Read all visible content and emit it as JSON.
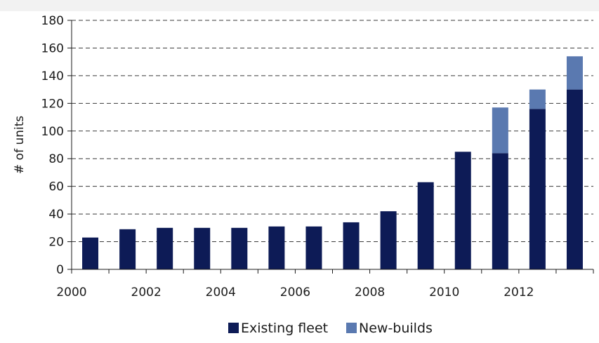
{
  "chart_data": {
    "type": "bar",
    "stacked": true,
    "title": "",
    "xlabel": "",
    "ylabel": "# of units",
    "ylim": [
      0,
      180
    ],
    "yticks": [
      0,
      20,
      40,
      60,
      80,
      100,
      120,
      140,
      160,
      180
    ],
    "grid": true,
    "legend_position": "bottom",
    "categories": [
      "2000",
      "2001",
      "2002",
      "2003",
      "2004",
      "2005",
      "2006",
      "2007",
      "2008",
      "2009",
      "2010",
      "2011",
      "2012",
      "2013"
    ],
    "x_tick_labels": [
      "2000",
      "2002",
      "2004",
      "2006",
      "2008",
      "2010",
      "2012"
    ],
    "series": [
      {
        "name": "Existing fleet",
        "color": "#0d1b56",
        "values": [
          23,
          29,
          30,
          30,
          30,
          31,
          31,
          34,
          42,
          63,
          85,
          84,
          116,
          130
        ]
      },
      {
        "name": "New-builds",
        "color": "#5a79b0",
        "values": [
          0,
          0,
          0,
          0,
          0,
          0,
          0,
          0,
          0,
          0,
          0,
          33,
          14,
          24
        ]
      }
    ]
  }
}
